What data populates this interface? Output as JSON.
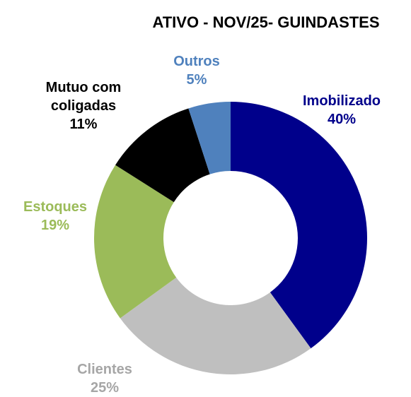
{
  "chart_data": {
    "type": "donut",
    "title": "ATIVO - NOV/25- GUINDASTES",
    "categories": [
      "Imobilizado",
      "Clientes",
      "Estoques",
      "Mutuo com coligadas",
      "Outros"
    ],
    "values": [
      40,
      25,
      19,
      11,
      5
    ],
    "value_labels": [
      "40%",
      "25%",
      "19%",
      "11%",
      "5%"
    ],
    "colors": [
      "#00008b",
      "#bfbfbf",
      "#9bbb59",
      "#000000",
      "#4f81bd"
    ]
  }
}
